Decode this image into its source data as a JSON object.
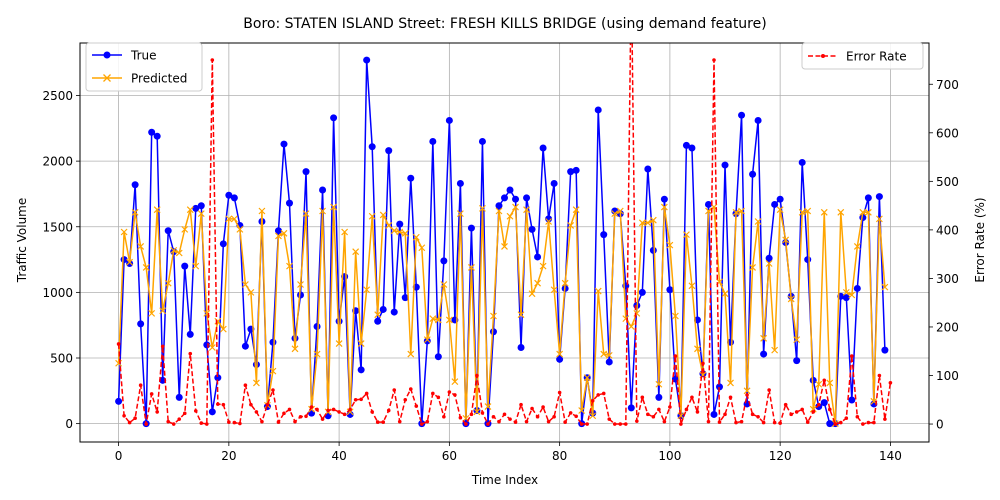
{
  "chart_data": {
    "type": "line",
    "title": "Boro: STATEN ISLAND Street: FRESH KILLS BRIDGE (using demand feature)",
    "xlabel": "Time Index",
    "ylabel_left": "Traffic Volume",
    "ylabel_right": "Error Rate (%)",
    "xlim": [
      -7,
      147
    ],
    "ylim_left": [
      -140,
      2900
    ],
    "ylim_right": [
      -37,
      785
    ],
    "x_ticks": [
      0,
      20,
      40,
      60,
      80,
      100,
      120,
      140
    ],
    "y_ticks_left": [
      0,
      500,
      1000,
      1500,
      2000,
      2500
    ],
    "y_ticks_right": [
      0,
      100,
      200,
      300,
      400,
      500,
      600,
      700
    ],
    "grid": true,
    "legend_left_position": "upper-left",
    "legend_right_position": "upper-right",
    "colors": {
      "true": "#0000ff",
      "predicted": "#ffa500",
      "error": "#ff0000",
      "grid": "#b0b0b0"
    },
    "series": [
      {
        "name": "True",
        "axis": "left",
        "values": [
          170,
          1250,
          1220,
          1820,
          760,
          0,
          2220,
          2190,
          330,
          1470,
          1310,
          200,
          1200,
          680,
          1640,
          1660,
          600,
          90,
          350,
          1370,
          1740,
          1720,
          1510,
          590,
          720,
          450,
          1540,
          130,
          620,
          1470,
          2130,
          1680,
          650,
          980,
          1920,
          80,
          740,
          1780,
          60,
          2330,
          780,
          1120,
          70,
          860,
          410,
          2770,
          2110,
          780,
          870,
          2080,
          850,
          1520,
          960,
          1870,
          1040,
          0,
          630,
          2150,
          510,
          1240,
          2310,
          790,
          1830,
          0,
          1490,
          100,
          2150,
          0,
          700,
          1660,
          1720,
          1780,
          1710,
          580,
          1720,
          1480,
          1270,
          2100,
          1560,
          1830,
          490,
          1030,
          1920,
          1930,
          0,
          350,
          80,
          2390,
          1440,
          470,
          1620,
          1600,
          1050,
          120,
          900,
          1000,
          1940,
          1320,
          200,
          1710,
          1020,
          340,
          60,
          2120,
          2100,
          790,
          380,
          1670,
          70,
          280,
          1970,
          620,
          1600,
          2350,
          150,
          1900,
          2310,
          530,
          1260,
          1670,
          1710,
          1380,
          970,
          480,
          1990,
          1250,
          330,
          130,
          160,
          0,
          0,
          970,
          960,
          180,
          1030,
          1570,
          1720,
          150,
          1730,
          560
        ]
      },
      {
        "name": "Predicted",
        "axis": "left",
        "values": [
          460,
          1460,
          1230,
          1610,
          1350,
          1190,
          840,
          1630,
          860,
          1070,
          1320,
          1300,
          1480,
          1630,
          1200,
          1600,
          840,
          580,
          780,
          720,
          1560,
          1560,
          1480,
          1060,
          1000,
          310,
          1620,
          140,
          400,
          1430,
          1450,
          1200,
          570,
          1060,
          1600,
          110,
          530,
          1620,
          90,
          1650,
          610,
          1460,
          90,
          1310,
          610,
          1020,
          1580,
          830,
          1590,
          1510,
          1470,
          1460,
          1450,
          530,
          1420,
          1340,
          640,
          800,
          790,
          1060,
          790,
          320,
          1600,
          40,
          1190,
          90,
          1640,
          130,
          820,
          1620,
          1350,
          1580,
          1650,
          830,
          1630,
          990,
          1070,
          1200,
          1540,
          1020,
          530,
          1070,
          1510,
          1630,
          100,
          350,
          60,
          1010,
          530,
          520,
          1600,
          1620,
          800,
          740,
          840,
          1530,
          1530,
          1550,
          300,
          1650,
          1360,
          820,
          60,
          1440,
          1050,
          570,
          370,
          1620,
          1650,
          1080,
          990,
          310,
          1610,
          1620,
          250,
          1190,
          1540,
          650,
          1220,
          560,
          1630,
          1400,
          950,
          640,
          1610,
          1620,
          110,
          300,
          1610,
          310,
          0,
          1610,
          1000,
          980,
          1350,
          1610,
          1610,
          170,
          1560,
          1040
        ]
      },
      {
        "name": "Error Rate",
        "axis": "right",
        "values": [
          165,
          17,
          3,
          12,
          80,
          0,
          62,
          25,
          160,
          5,
          0,
          10,
          22,
          145,
          27,
          2,
          0,
          750,
          41,
          40,
          4,
          3,
          1,
          80,
          40,
          25,
          5,
          40,
          70,
          4,
          22,
          30,
          5,
          15,
          16,
          35,
          30,
          10,
          28,
          30,
          25,
          20,
          30,
          50,
          51,
          63,
          25,
          4,
          4,
          28,
          70,
          5,
          50,
          72,
          37,
          0,
          5,
          63,
          55,
          15,
          66,
          60,
          13,
          0,
          20,
          100,
          23,
          0,
          15,
          5,
          20,
          10,
          4,
          40,
          5,
          32,
          15,
          35,
          5,
          15,
          65,
          4,
          23,
          16,
          0,
          0,
          48,
          60,
          63,
          10,
          0,
          0,
          0,
          930,
          6,
          55,
          20,
          15,
          30,
          5,
          35,
          140,
          0,
          30,
          55,
          25,
          125,
          5,
          750,
          4,
          20,
          55,
          3,
          5,
          60,
          20,
          15,
          3,
          70,
          3,
          2,
          40,
          20,
          25,
          30,
          4,
          25,
          40,
          90,
          30,
          0,
          3,
          12,
          140,
          15,
          0,
          3,
          3,
          100,
          10,
          85
        ]
      }
    ]
  },
  "legend_left": {
    "item_true": "True",
    "item_predicted": "Predicted"
  },
  "legend_right": {
    "item_error": "Error Rate"
  }
}
